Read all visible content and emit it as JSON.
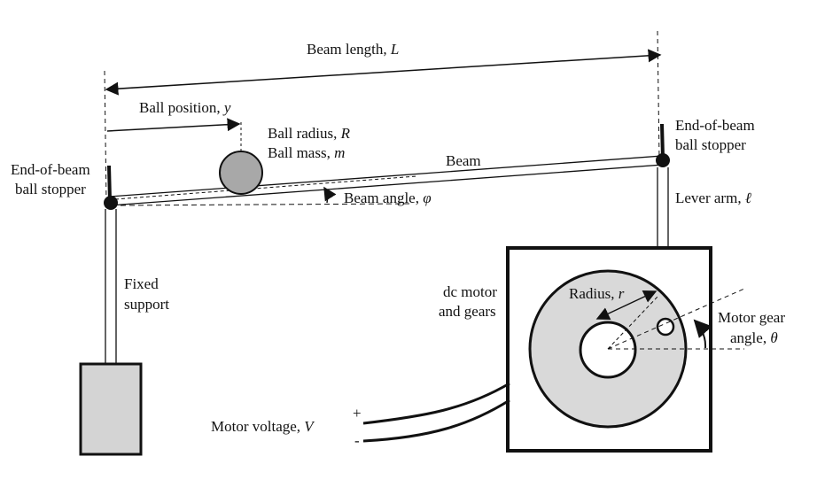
{
  "labels": {
    "beam_length": "Beam length,",
    "beam_length_sym": "L",
    "ball_position": "Ball position,",
    "ball_position_sym": "y",
    "ball_radius": "Ball radius,",
    "ball_radius_sym": "R",
    "ball_mass": "Ball mass,",
    "ball_mass_sym": "m",
    "beam": "Beam",
    "beam_angle": "Beam angle,",
    "beam_angle_sym": "φ",
    "stopper_left_1": "End-of-beam",
    "stopper_left_2": "ball stopper",
    "stopper_right_1": "End-of-beam",
    "stopper_right_2": "ball stopper",
    "lever_arm": "Lever arm,",
    "lever_arm_sym": "ℓ",
    "fixed_1": "Fixed",
    "fixed_2": "support",
    "motor_1": "dc motor",
    "motor_2": "and gears",
    "radius": "Radius,",
    "radius_sym": "r",
    "gear_angle_1": "Motor gear",
    "gear_angle_2": "angle,",
    "gear_angle_sym": "θ",
    "motor_voltage": "Motor voltage,",
    "motor_voltage_sym": "V",
    "plus": "+",
    "minus": "-"
  },
  "colors": {
    "line": "#111111",
    "ball_fill": "#a8a8a8",
    "gear_fill": "#d9d9d9",
    "support_fill": "#d4d4d4"
  }
}
